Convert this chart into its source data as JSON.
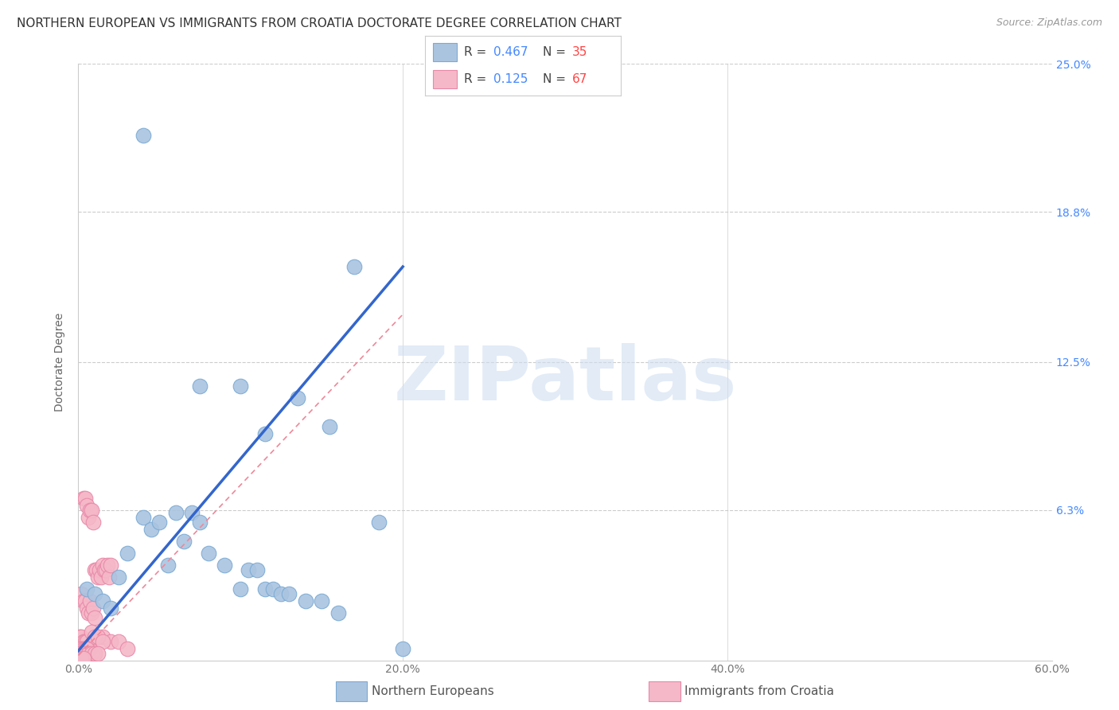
{
  "title": "NORTHERN EUROPEAN VS IMMIGRANTS FROM CROATIA DOCTORATE DEGREE CORRELATION CHART",
  "source": "Source: ZipAtlas.com",
  "ylabel": "Doctorate Degree",
  "xlim": [
    0,
    0.6
  ],
  "ylim": [
    0,
    0.25
  ],
  "xtick_labels": [
    "0.0%",
    "20.0%",
    "40.0%",
    "60.0%"
  ],
  "xtick_vals": [
    0,
    0.2,
    0.4,
    0.6
  ],
  "ytick_labels": [
    "6.3%",
    "12.5%",
    "18.8%",
    "25.0%"
  ],
  "ytick_vals": [
    0.063,
    0.125,
    0.188,
    0.25
  ],
  "watermark": "ZIPatlas",
  "legend_r_blue": "0.467",
  "legend_n_blue": "35",
  "legend_r_pink": "0.125",
  "legend_n_pink": "67",
  "legend_label_blue": "Northern Europeans",
  "legend_label_pink": "Immigrants from Croatia",
  "blue_color": "#aac4e0",
  "blue_edge": "#7aaad4",
  "pink_color": "#f5b8c8",
  "pink_edge": "#e888a8",
  "blue_line_color": "#3366cc",
  "pink_line_color": "#ee8899",
  "blue_line_x0": 0.0,
  "blue_line_y0": 0.004,
  "blue_line_x1": 0.2,
  "blue_line_y1": 0.165,
  "pink_line_x0": 0.0,
  "pink_line_y0": 0.002,
  "pink_line_x1": 0.2,
  "pink_line_y1": 0.145,
  "blue_scatter_x": [
    0.04,
    0.075,
    0.1,
    0.115,
    0.135,
    0.155,
    0.17,
    0.185,
    0.005,
    0.01,
    0.015,
    0.02,
    0.025,
    0.03,
    0.04,
    0.045,
    0.05,
    0.055,
    0.06,
    0.065,
    0.07,
    0.075,
    0.08,
    0.09,
    0.1,
    0.105,
    0.11,
    0.115,
    0.12,
    0.125,
    0.13,
    0.14,
    0.15,
    0.16,
    0.2
  ],
  "blue_scatter_y": [
    0.22,
    0.115,
    0.115,
    0.095,
    0.11,
    0.098,
    0.165,
    0.058,
    0.03,
    0.028,
    0.025,
    0.022,
    0.035,
    0.045,
    0.06,
    0.055,
    0.058,
    0.04,
    0.062,
    0.05,
    0.062,
    0.058,
    0.045,
    0.04,
    0.03,
    0.038,
    0.038,
    0.03,
    0.03,
    0.028,
    0.028,
    0.025,
    0.025,
    0.02,
    0.005
  ],
  "pink_scatter_x": [
    0.003,
    0.004,
    0.005,
    0.006,
    0.007,
    0.008,
    0.009,
    0.01,
    0.011,
    0.012,
    0.013,
    0.014,
    0.015,
    0.016,
    0.017,
    0.018,
    0.019,
    0.02,
    0.002,
    0.003,
    0.004,
    0.005,
    0.006,
    0.007,
    0.008,
    0.009,
    0.01,
    0.001,
    0.002,
    0.003,
    0.004,
    0.005,
    0.006,
    0.007,
    0.001,
    0.002,
    0.003,
    0.004,
    0.005,
    0.001,
    0.002,
    0.003,
    0.001,
    0.002,
    0.001,
    0.002,
    0.001,
    0.001,
    0.001,
    0.001,
    0.015,
    0.02,
    0.025,
    0.03,
    0.008,
    0.01,
    0.012,
    0.015,
    0.005,
    0.004,
    0.003,
    0.006,
    0.008,
    0.01,
    0.012,
    0.002,
    0.003
  ],
  "pink_scatter_y": [
    0.068,
    0.068,
    0.065,
    0.06,
    0.063,
    0.063,
    0.058,
    0.038,
    0.038,
    0.035,
    0.038,
    0.035,
    0.04,
    0.038,
    0.038,
    0.04,
    0.035,
    0.04,
    0.028,
    0.025,
    0.025,
    0.022,
    0.02,
    0.025,
    0.02,
    0.022,
    0.018,
    0.01,
    0.01,
    0.008,
    0.008,
    0.008,
    0.005,
    0.005,
    0.005,
    0.005,
    0.005,
    0.005,
    0.005,
    0.003,
    0.003,
    0.003,
    0.002,
    0.002,
    0.002,
    0.002,
    0.001,
    0.001,
    0.001,
    0.001,
    0.01,
    0.008,
    0.008,
    0.005,
    0.012,
    0.01,
    0.01,
    0.008,
    0.005,
    0.003,
    0.002,
    0.003,
    0.003,
    0.003,
    0.003,
    0.001,
    0.001
  ],
  "title_fontsize": 11,
  "axis_label_fontsize": 10,
  "tick_fontsize": 10,
  "right_tick_color": "#4488ff",
  "source_color": "#999999",
  "tick_color": "#777777"
}
